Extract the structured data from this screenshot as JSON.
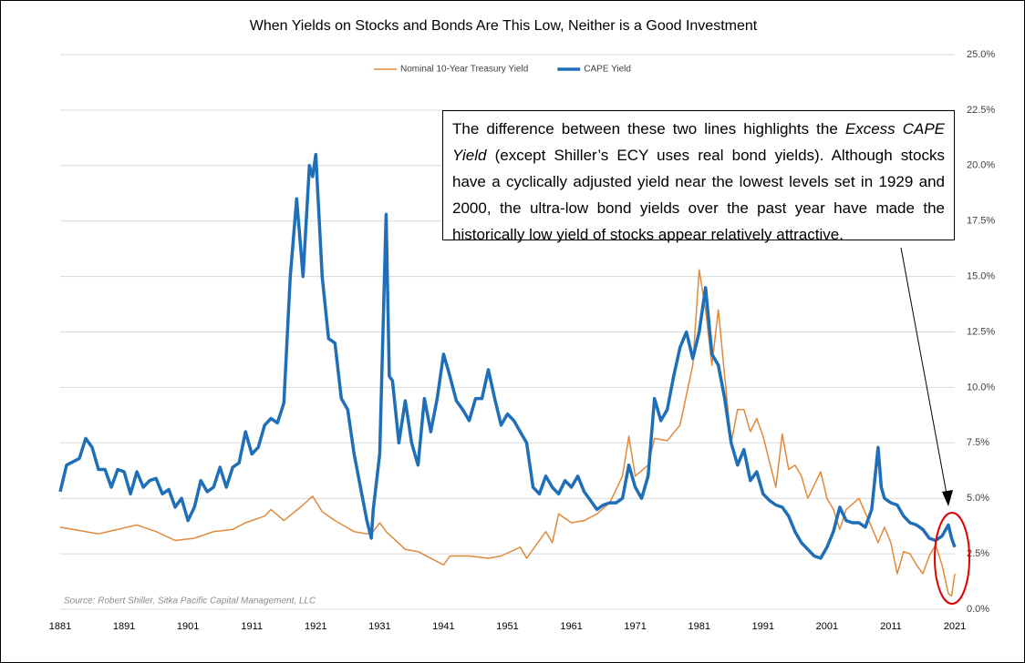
{
  "chart_data": {
    "type": "line",
    "title": "When Yields on Stocks and Bonds Are This Low, Neither is a Good Investment",
    "source": "Source: Robert Shiller, Sitka Pacific Capital Management, LLC",
    "annotation": [
      "The difference between these two lines highlights the ",
      "Excess CAPE Yield",
      " (except Shiller’s ECY uses real bond yields).  Although stocks have a cyclically adjusted yield near the lowest levels set in 1929 and 2000, the ultra-low bond yields over the past year have made the historically low yield of stocks appear relatively attractive."
    ],
    "xlim": [
      1881,
      2021
    ],
    "xticks": [
      1881,
      1891,
      1901,
      1911,
      1921,
      1931,
      1941,
      1951,
      1961,
      1971,
      1981,
      1991,
      2001,
      2011,
      2021
    ],
    "ylim": [
      0,
      25
    ],
    "yticks": [
      {
        "value": 0,
        "label": "0.0%"
      },
      {
        "value": 2.5,
        "label": "2.5%"
      },
      {
        "value": 5,
        "label": "5.0%"
      },
      {
        "value": 7.5,
        "label": "7.5%"
      },
      {
        "value": 10,
        "label": "10.0%"
      },
      {
        "value": 12.5,
        "label": "12.5%"
      },
      {
        "value": 15,
        "label": "15.0%"
      },
      {
        "value": 17.5,
        "label": "17.5%"
      },
      {
        "value": 20,
        "label": "20.0%"
      },
      {
        "value": 22.5,
        "label": "22.5%"
      },
      {
        "value": 25,
        "label": "25.0%"
      }
    ],
    "grid": true,
    "legend": "top",
    "series": [
      {
        "name": "Nominal 10-Year Treasury Yield",
        "color": "#e08a3c",
        "width": 1.5,
        "x": [
          1881,
          1885,
          1887,
          1890,
          1893,
          1896,
          1899,
          1902,
          1905,
          1908,
          1910,
          1913,
          1914,
          1916,
          1919,
          1920.5,
          1922,
          1924,
          1927,
          1929,
          1930,
          1931,
          1932,
          1935,
          1937,
          1941,
          1942,
          1945,
          1948,
          1950,
          1953,
          1954,
          1957,
          1958,
          1959,
          1961,
          1963,
          1965,
          1967,
          1969,
          1970,
          1971,
          1973,
          1974,
          1976,
          1978,
          1980,
          1981,
          1982,
          1983,
          1984,
          1985,
          1986,
          1987,
          1988,
          1989,
          1990,
          1991,
          1993,
          1994,
          1995,
          1996,
          1997,
          1998,
          2000,
          2001,
          2002,
          2003,
          2004,
          2006,
          2008,
          2009,
          2010,
          2011,
          2012,
          2013,
          2014,
          2015,
          2016,
          2017,
          2018,
          2019,
          2020,
          2020.5,
          2021
        ],
        "values": [
          3.7,
          3.5,
          3.4,
          3.6,
          3.8,
          3.5,
          3.1,
          3.2,
          3.5,
          3.6,
          3.9,
          4.2,
          4.5,
          4.0,
          4.7,
          5.1,
          4.4,
          4.0,
          3.5,
          3.4,
          3.5,
          3.9,
          3.5,
          2.7,
          2.6,
          2.0,
          2.4,
          2.4,
          2.3,
          2.4,
          2.8,
          2.3,
          3.5,
          3.0,
          4.3,
          3.9,
          4.0,
          4.3,
          4.8,
          6.0,
          7.8,
          6.0,
          6.5,
          7.7,
          7.6,
          8.3,
          11.0,
          15.3,
          13.5,
          11.0,
          13.5,
          10.5,
          7.5,
          9.0,
          9.0,
          8.0,
          8.6,
          7.8,
          5.5,
          7.9,
          6.3,
          6.5,
          6.0,
          5.0,
          6.2,
          5.0,
          4.5,
          3.6,
          4.5,
          5.0,
          3.7,
          3.0,
          3.7,
          3.0,
          1.6,
          2.6,
          2.5,
          2.0,
          1.6,
          2.4,
          2.9,
          2.0,
          0.7,
          0.6,
          1.6
        ]
      },
      {
        "name": "CAPE Yield",
        "color": "#1f6fb8",
        "width": 3.5,
        "x": [
          1881,
          1882,
          1884,
          1885,
          1886,
          1887,
          1888,
          1889,
          1890,
          1891,
          1892,
          1893,
          1894,
          1895,
          1896,
          1897,
          1898,
          1899,
          1900,
          1901,
          1902,
          1903,
          1904,
          1905,
          1906,
          1907,
          1908,
          1909,
          1910,
          1911,
          1912,
          1913,
          1914,
          1915,
          1916,
          1917,
          1918,
          1919,
          1920,
          1920.5,
          1921,
          1922,
          1923,
          1924,
          1925,
          1926,
          1927,
          1928,
          1929,
          1929.7,
          1930,
          1931,
          1932,
          1932.5,
          1933,
          1934,
          1935,
          1936,
          1937,
          1938,
          1939,
          1940,
          1941,
          1942,
          1943,
          1944,
          1945,
          1946,
          1947,
          1948,
          1949,
          1950,
          1951,
          1952,
          1953,
          1954,
          1955,
          1956,
          1957,
          1958,
          1959,
          1960,
          1961,
          1962,
          1963,
          1964,
          1965,
          1966,
          1967,
          1968,
          1969,
          1970,
          1971,
          1972,
          1973,
          1974,
          1975,
          1976,
          1977,
          1978,
          1979,
          1980,
          1981,
          1982,
          1983,
          1984,
          1985,
          1986,
          1987,
          1988,
          1989,
          1990,
          1991,
          1992,
          1993,
          1994,
          1995,
          1996,
          1997,
          1998,
          1999,
          2000,
          2001,
          2002,
          2003,
          2004,
          2005,
          2006,
          2007,
          2008,
          2009,
          2009.5,
          2010,
          2011,
          2012,
          2013,
          2014,
          2015,
          2016,
          2017,
          2018,
          2019,
          2020,
          2020.5,
          2021
        ],
        "values": [
          5.3,
          6.5,
          6.8,
          7.7,
          7.3,
          6.3,
          6.3,
          5.5,
          6.3,
          6.2,
          5.2,
          6.2,
          5.5,
          5.8,
          5.9,
          5.2,
          5.4,
          4.6,
          5.0,
          4.0,
          4.6,
          5.8,
          5.3,
          5.5,
          6.4,
          5.5,
          6.4,
          6.6,
          8.0,
          7.0,
          7.3,
          8.3,
          8.6,
          8.4,
          9.3,
          15.0,
          18.5,
          15.0,
          20.0,
          19.5,
          20.5,
          15.0,
          12.2,
          12.0,
          9.5,
          9.0,
          7.0,
          5.5,
          4.0,
          3.2,
          4.5,
          7.0,
          17.8,
          10.5,
          10.3,
          7.5,
          9.4,
          7.5,
          6.5,
          9.5,
          8.0,
          9.5,
          11.5,
          10.5,
          9.4,
          9.0,
          8.5,
          9.5,
          9.5,
          10.8,
          9.5,
          8.3,
          8.8,
          8.5,
          8.0,
          7.5,
          5.5,
          5.2,
          6.0,
          5.5,
          5.2,
          5.8,
          5.5,
          6.0,
          5.3,
          4.9,
          4.5,
          4.7,
          4.8,
          4.8,
          5.0,
          6.5,
          5.5,
          5.0,
          6.0,
          9.5,
          8.5,
          9.0,
          10.5,
          11.8,
          12.5,
          11.3,
          12.5,
          14.5,
          11.5,
          11.0,
          9.5,
          7.5,
          6.5,
          7.2,
          5.8,
          6.2,
          5.2,
          4.9,
          4.7,
          4.6,
          4.2,
          3.5,
          3.0,
          2.7,
          2.4,
          2.3,
          2.8,
          3.5,
          4.6,
          4.0,
          3.9,
          3.9,
          3.7,
          4.5,
          7.3,
          5.5,
          5.0,
          4.8,
          4.7,
          4.2,
          3.9,
          3.8,
          3.6,
          3.2,
          3.1,
          3.3,
          3.8,
          3.2,
          2.8
        ]
      }
    ]
  }
}
